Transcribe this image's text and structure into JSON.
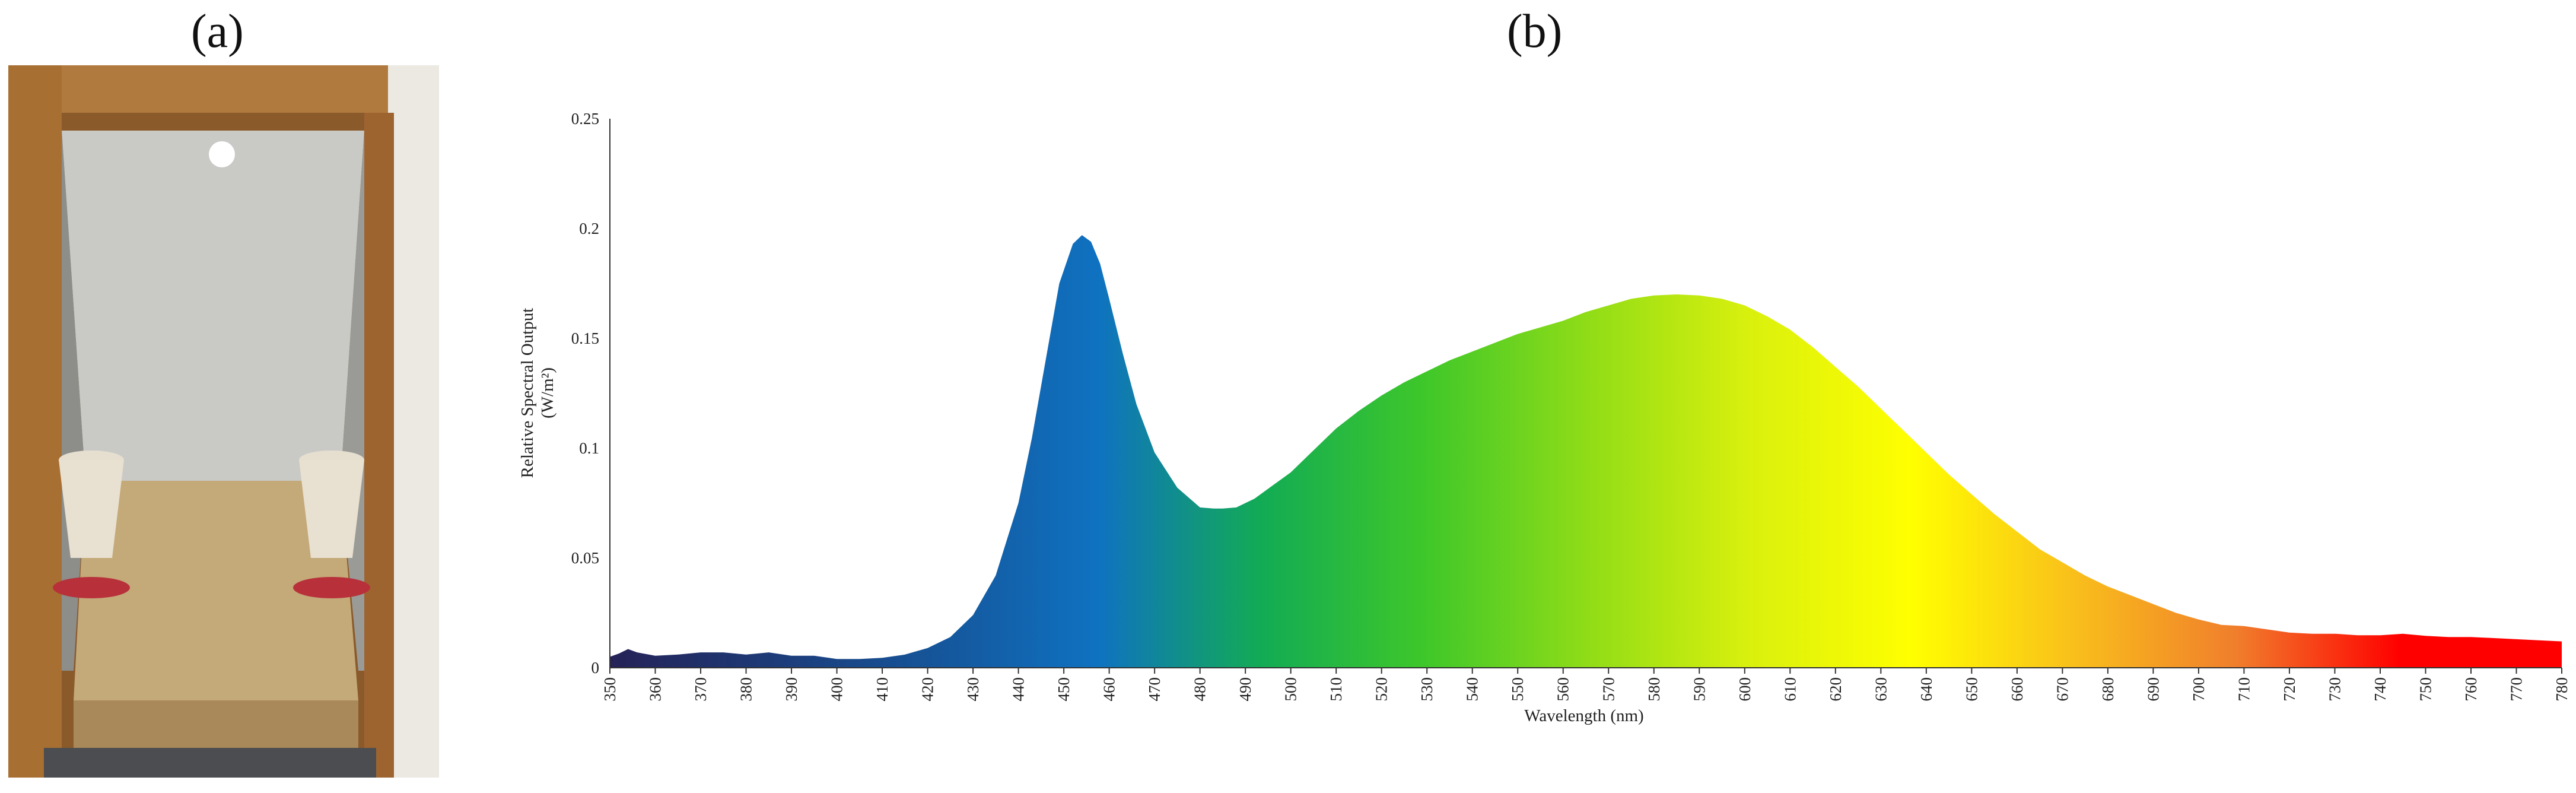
{
  "panels": {
    "a": "(a)",
    "b": "(b)"
  },
  "photo": {
    "description_icon": "poultry-pen-photo-icon"
  },
  "chart_data": {
    "type": "area",
    "xlabel": "Wavelength (nm)",
    "ylabel_line1": "Relative Spectral Output",
    "ylabel_line2": "(W/m²)",
    "xlim": [
      350,
      780
    ],
    "ylim": [
      0,
      0.25
    ],
    "x_ticks": [
      "350",
      "360",
      "370",
      "380",
      "390",
      "400",
      "410",
      "420",
      "430",
      "440",
      "450",
      "460",
      "470",
      "480",
      "490",
      "500",
      "510",
      "520",
      "530",
      "540",
      "550",
      "560",
      "570",
      "580",
      "590",
      "600",
      "610",
      "620",
      "630",
      "640",
      "650",
      "660",
      "670",
      "680",
      "690",
      "700",
      "710",
      "720",
      "730",
      "740",
      "750",
      "760",
      "770",
      "780"
    ],
    "y_ticks": [
      "0",
      "0.05",
      "0.1",
      "0.15",
      "0.2",
      "0.25"
    ],
    "grid": false,
    "fill_gradient": [
      "#252256",
      "#1d3b78",
      "#15559a",
      "#0f72c1",
      "#12ab55",
      "#3ec72a",
      "#8fdc17",
      "#d9f00d",
      "#ffff00",
      "#f9bf1b",
      "#f07e2c",
      "#ff0000",
      "#ff0000"
    ],
    "series": [
      {
        "x": [
          350,
          352,
          354,
          356,
          360,
          365,
          370,
          375,
          380,
          385,
          390,
          395,
          400,
          405,
          410,
          415,
          420,
          425,
          430,
          435,
          440,
          443,
          446,
          449,
          452,
          454,
          456,
          458,
          460,
          463,
          466,
          470,
          475,
          480,
          483,
          485,
          488,
          492,
          496,
          500,
          505,
          510,
          515,
          520,
          525,
          530,
          535,
          540,
          545,
          550,
          555,
          560,
          565,
          570,
          575,
          580,
          585,
          590,
          595,
          600,
          605,
          610,
          615,
          620,
          625,
          630,
          635,
          640,
          645,
          650,
          655,
          660,
          665,
          670,
          675,
          680,
          685,
          690,
          695,
          700,
          705,
          710,
          715,
          720,
          725,
          730,
          735,
          740,
          745,
          750,
          755,
          760,
          765,
          770,
          775,
          780
        ],
        "y": [
          0.005,
          0.0065,
          0.0085,
          0.007,
          0.0055,
          0.006,
          0.007,
          0.007,
          0.006,
          0.007,
          0.0055,
          0.0055,
          0.004,
          0.004,
          0.0045,
          0.006,
          0.009,
          0.014,
          0.024,
          0.042,
          0.075,
          0.105,
          0.14,
          0.175,
          0.193,
          0.197,
          0.194,
          0.184,
          0.168,
          0.143,
          0.12,
          0.098,
          0.082,
          0.073,
          0.0725,
          0.0725,
          0.073,
          0.077,
          0.083,
          0.089,
          0.099,
          0.109,
          0.117,
          0.124,
          0.13,
          0.135,
          0.14,
          0.144,
          0.148,
          0.152,
          0.155,
          0.158,
          0.162,
          0.165,
          0.168,
          0.1695,
          0.17,
          0.1695,
          0.168,
          0.165,
          0.16,
          0.154,
          0.146,
          0.137,
          0.128,
          0.118,
          0.108,
          0.098,
          0.088,
          0.079,
          0.07,
          0.062,
          0.054,
          0.048,
          0.042,
          0.037,
          0.033,
          0.029,
          0.025,
          0.022,
          0.0195,
          0.019,
          0.0175,
          0.016,
          0.0155,
          0.0155,
          0.0148,
          0.0148,
          0.0155,
          0.0145,
          0.014,
          0.014,
          0.0135,
          0.013,
          0.0125,
          0.012
        ]
      }
    ]
  }
}
